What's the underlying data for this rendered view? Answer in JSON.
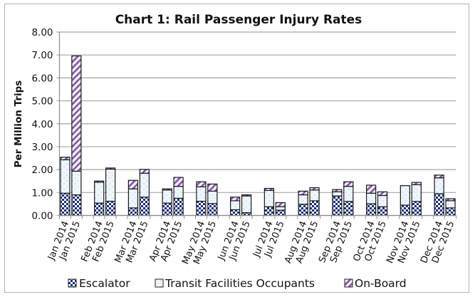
{
  "chart_data": {
    "type": "bar",
    "stacked": true,
    "title": "Chart 1: Rail Passenger Injury Rates",
    "xlabel": "",
    "ylabel": "Per Million Trips",
    "ylim": [
      0,
      8
    ],
    "yticks": [
      "0.00",
      "1.00",
      "2.00",
      "3.00",
      "4.00",
      "5.00",
      "6.00",
      "7.00",
      "8.00"
    ],
    "grid": true,
    "legend_position": "bottom",
    "categories": [
      "Jan 2014",
      "Jan 2015",
      "Feb 2014",
      "Feb 2015",
      "Mar 2014",
      "Mar 2015",
      "Apr 2014",
      "Apr 2015",
      "May 2014",
      "May 2015",
      "Jun 2014",
      "Jun 2015",
      "Jul 2014",
      "Jul 2015",
      "Aug 2014",
      "Aug 2015",
      "Sep 2014",
      "Sep 2015",
      "Oct 2014",
      "Oct 2015",
      "Nov 2014",
      "Nov 2015",
      "Dec 2014",
      "Dec 2015"
    ],
    "series": [
      {
        "name": "Escalator",
        "pattern": "checkerboard",
        "color": "#1c2f78",
        "values": [
          0.97,
          0.9,
          0.54,
          0.62,
          0.33,
          0.8,
          0.54,
          0.75,
          0.62,
          0.52,
          0.25,
          0.12,
          0.38,
          0.23,
          0.49,
          0.64,
          0.85,
          0.61,
          0.51,
          0.38,
          0.45,
          0.61,
          0.95,
          0.33
        ]
      },
      {
        "name": "Transit Facilities Occupants",
        "pattern": "dots",
        "color": "#eef6fb",
        "values": [
          1.46,
          1.03,
          0.91,
          1.4,
          0.83,
          1.04,
          0.57,
          0.52,
          0.63,
          0.54,
          0.39,
          0.73,
          0.71,
          0.15,
          0.41,
          0.47,
          0.18,
          0.66,
          0.46,
          0.49,
          0.85,
          0.73,
          0.69,
          0.31
        ]
      },
      {
        "name": "On-Board",
        "pattern": "diagonal-stripes",
        "color": "#7d5aa6",
        "values": [
          0.11,
          5.03,
          0.05,
          0.05,
          0.37,
          0.17,
          0.05,
          0.39,
          0.22,
          0.31,
          0.16,
          0.05,
          0.09,
          0.18,
          0.16,
          0.1,
          0.1,
          0.2,
          0.35,
          0.16,
          0.0,
          0.1,
          0.12,
          0.09
        ]
      }
    ]
  }
}
